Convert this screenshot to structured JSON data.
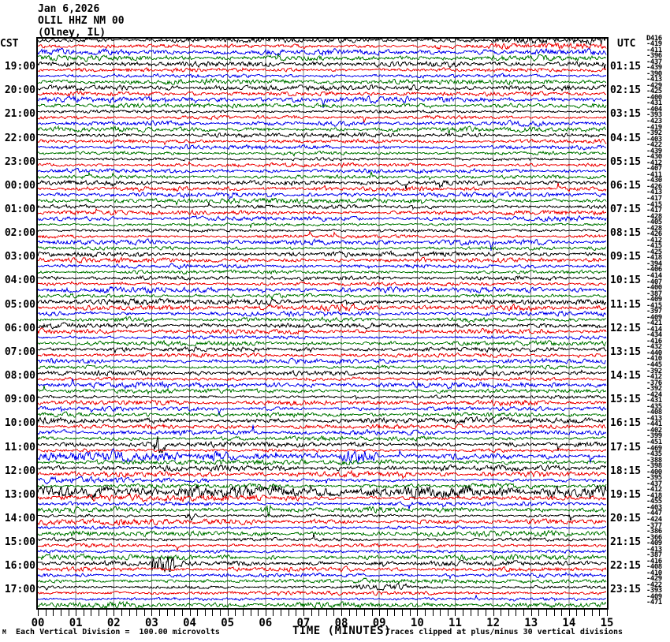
{
  "title": {
    "date": "Jan 6,2026",
    "station": "OLIL HHZ NM 00",
    "location": "(Olney, IL)"
  },
  "axes": {
    "left_header": "CST",
    "right_header": "UTC",
    "x_label": "TIME (MINUTES)"
  },
  "footer": {
    "scale_note": "Each Vertical Division =  100.00 microvolts",
    "clip_note": "Traces clipped at plus/minus 30 vertical divisions",
    "watermark": "M"
  },
  "colors": {
    "black": "#000000",
    "red": "#ee0000",
    "blue": "#0000ee",
    "green": "#007700",
    "grid": "#7d7d7d",
    "frame": "#000000"
  },
  "chart_data": {
    "type": "line",
    "subtype": "helicorder-seismogram",
    "title": "OLIL HHZ NM 00 (Olney, IL) Jan 6,2026",
    "xlabel": "TIME (MINUTES)",
    "x_range_minutes": [
      0,
      15
    ],
    "x_ticks": [
      "00",
      "01",
      "02",
      "03",
      "04",
      "05",
      "06",
      "07",
      "08",
      "09",
      "10",
      "11",
      "12",
      "13",
      "14",
      "15"
    ],
    "minutes_per_line": 15,
    "lines_per_hour": 4,
    "num_lines": 96,
    "color_cycle": [
      "black",
      "red",
      "blue",
      "green"
    ],
    "grid": "vertical gray line at each minute",
    "legend": "none",
    "vertical_division_microvolts": 100.0,
    "clip_divisions": 30,
    "left_axis_cst": [
      "19:00",
      "20:00",
      "21:00",
      "22:00",
      "23:00",
      "00:00",
      "01:00",
      "02:00",
      "03:00",
      "04:00",
      "05:00",
      "06:00",
      "07:00",
      "08:00",
      "09:00",
      "10:00",
      "11:00",
      "12:00",
      "13:00",
      "14:00",
      "15:00",
      "16:00",
      "17:00"
    ],
    "right_axis_utc": [
      "01:15",
      "02:15",
      "03:15",
      "04:15",
      "05:15",
      "06:15",
      "07:15",
      "08:15",
      "09:15",
      "10:15",
      "11:15",
      "12:15",
      "13:15",
      "14:15",
      "15:15",
      "16:15",
      "17:15",
      "18:15",
      "19:15",
      "20:15",
      "21:15",
      "22:15",
      "23:15"
    ],
    "right_edge_dc_counts": [
      "D416",
      "-419",
      "-411",
      "-396",
      "-437",
      "-439",
      "-390",
      "-413",
      "-429",
      "-425",
      "-400",
      "-431",
      "-404",
      "-393",
      "-423",
      "-419",
      "-392",
      "-403",
      "-422",
      "-439",
      "-430",
      "-412",
      "-407",
      "-411",
      "-430",
      "-426",
      "-413",
      "-417",
      "-415",
      "-417",
      "-428",
      "-405",
      "-428",
      "-426",
      "-412",
      "-415",
      "-425",
      "-418",
      "-394",
      "-406",
      "-414",
      "-407",
      "-400",
      "-387",
      "-409",
      "-415",
      "-397",
      "-409",
      "-421",
      "-414",
      "-434",
      "-416",
      "-432",
      "-440",
      "-410",
      "-445",
      "-392",
      "-412",
      "-376",
      "-392",
      "-424",
      "-431",
      "-435",
      "-408",
      "-413",
      "-441",
      "-402",
      "-399",
      "-451",
      "-469",
      "-435",
      "-388",
      "-398",
      "-400",
      "-395",
      "-437",
      "-412",
      "-418",
      "-455",
      "-403",
      "-447",
      "-424",
      "-377",
      "-386",
      "-366",
      "-409",
      "-413",
      "-387",
      "-416",
      "-408",
      "-410",
      "-429",
      "-422",
      "-393",
      "-409",
      "-471"
    ],
    "bursts": [
      {
        "row": 0,
        "from": 0.75,
        "to": 1.0,
        "gain": 1.6
      },
      {
        "row": 1,
        "from": 0.7,
        "to": 1.0,
        "gain": 2.2
      },
      {
        "row": 57,
        "from": 0.45,
        "to": 0.6,
        "gain": 1.8
      },
      {
        "row": 68,
        "from": 0.205,
        "to": 0.225,
        "gain": 4.0
      },
      {
        "row": 70,
        "from": 0.0,
        "to": 0.35,
        "gain": 2.0
      },
      {
        "row": 70,
        "from": 0.53,
        "to": 0.6,
        "gain": 3.0
      },
      {
        "row": 73,
        "from": 0.0,
        "to": 1.0,
        "gain": 1.5
      },
      {
        "row": 74,
        "from": 0.0,
        "to": 0.3,
        "gain": 2.0
      },
      {
        "row": 76,
        "from": 0.0,
        "to": 1.0,
        "gain": 2.4
      },
      {
        "row": 77,
        "from": 0.0,
        "to": 0.5,
        "gain": 1.5
      },
      {
        "row": 79,
        "from": 0.39,
        "to": 0.41,
        "gain": 6.0
      },
      {
        "row": 80,
        "from": 0.26,
        "to": 0.28,
        "gain": 5.0
      },
      {
        "row": 88,
        "from": 0.2,
        "to": 0.24,
        "gain": 5.0
      },
      {
        "row": 92,
        "from": 0.55,
        "to": 0.65,
        "gain": 1.8
      }
    ]
  }
}
